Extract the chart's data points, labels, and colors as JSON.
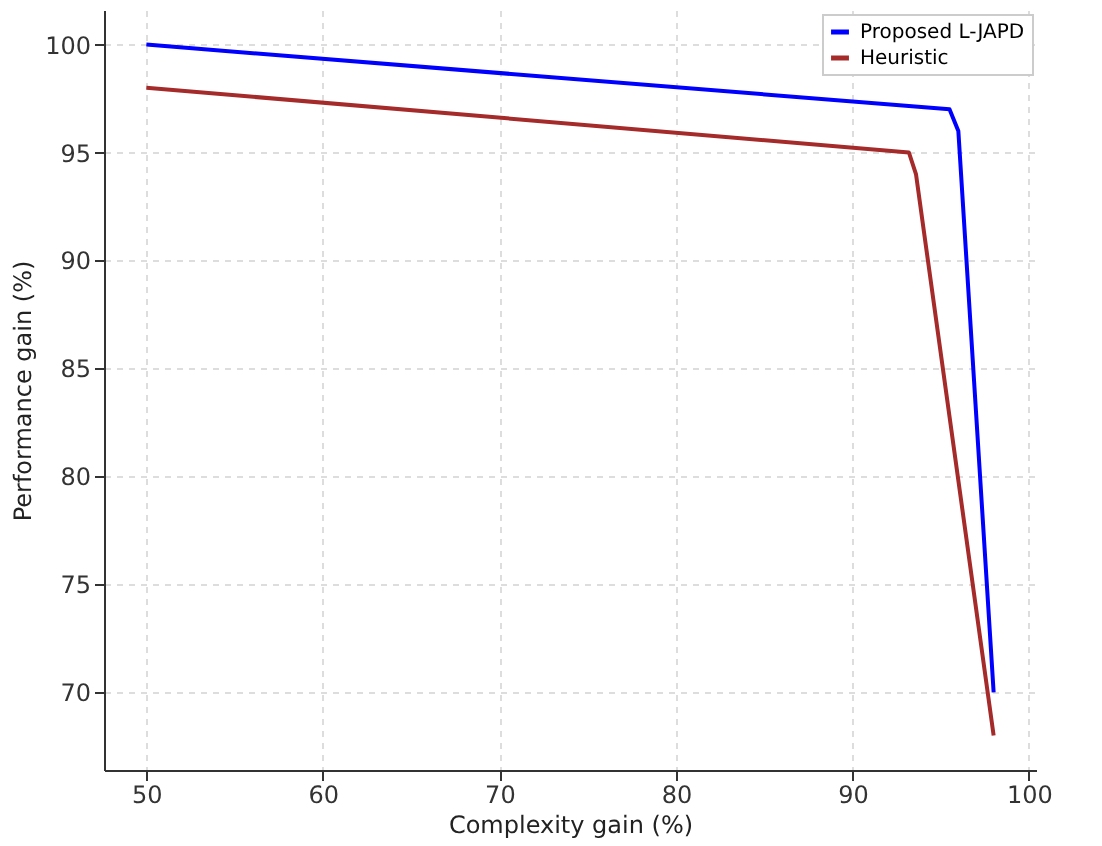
{
  "chart_data": {
    "type": "line",
    "xlabel": "Complexity gain (%)",
    "ylabel": "Performance gain (%)",
    "xlim": [
      47.6,
      100.4
    ],
    "xticks": [
      50,
      60,
      70,
      80,
      90,
      100
    ],
    "ylim": [
      66.4,
      101.6
    ],
    "yticks": [
      70,
      75,
      80,
      85,
      90,
      95,
      100
    ],
    "grid": true,
    "legend": "top right",
    "marker": "none",
    "line_style": "solid",
    "series": [
      {
        "name": "Proposed L-JAPD",
        "color": "#0000ff",
        "x": [
          50,
          95.5,
          96,
          98
        ],
        "values": [
          100,
          97,
          96,
          70
        ]
      },
      {
        "name": "Heuristic",
        "color": "#a52a2a",
        "x": [
          50,
          93.2,
          93.6,
          98
        ],
        "values": [
          98,
          95,
          94,
          68
        ]
      }
    ]
  }
}
